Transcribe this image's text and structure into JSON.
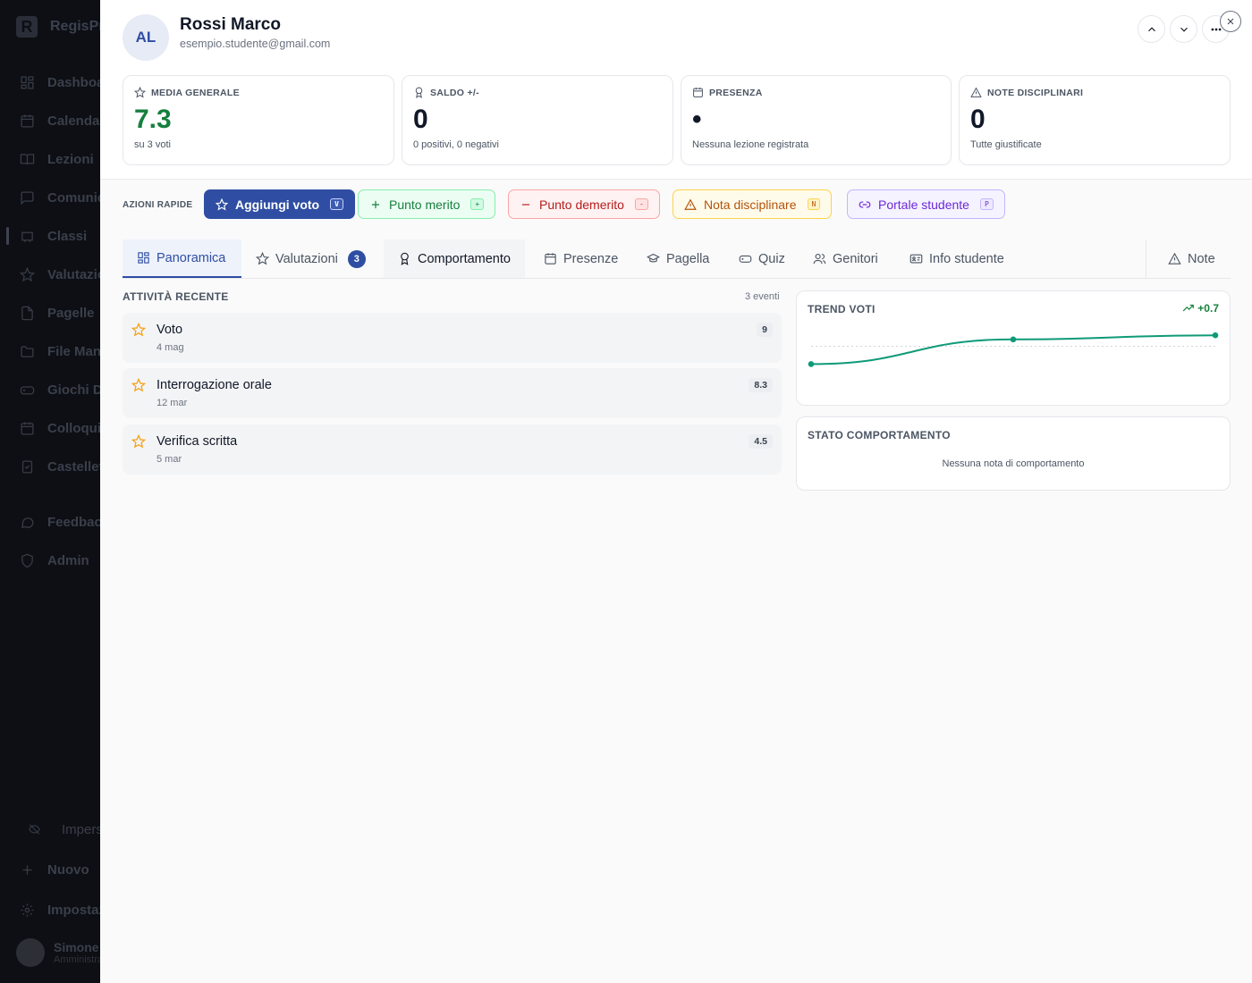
{
  "sidebar": {
    "brand": "RegisPr",
    "items": [
      {
        "label": "Dashboard",
        "icon": "dashboard-icon"
      },
      {
        "label": "Calendario",
        "icon": "calendar-icon"
      },
      {
        "label": "Lezioni",
        "icon": "book-icon"
      },
      {
        "label": "Comunicazioni",
        "icon": "message-icon"
      },
      {
        "label": "Classi",
        "icon": "class-icon"
      },
      {
        "label": "Valutazioni",
        "icon": "star-icon"
      },
      {
        "label": "Pagelle",
        "icon": "report-icon"
      },
      {
        "label": "File Manager",
        "icon": "folder-icon"
      },
      {
        "label": "Giochi Didattici",
        "icon": "gamepad-icon"
      },
      {
        "label": "Colloqui",
        "icon": "meeting-icon"
      },
      {
        "label": "Castelletto",
        "icon": "clipboard-icon"
      },
      {
        "label": "Feedback",
        "icon": "feedback-icon"
      },
      {
        "label": "Admin",
        "icon": "shield-icon"
      }
    ],
    "bottom": [
      {
        "label": "Impersona",
        "icon": "eye-off-icon"
      },
      {
        "label": "Nuovo",
        "icon": "plus-icon"
      },
      {
        "label": "Impostazioni",
        "icon": "gear-icon"
      }
    ],
    "user": {
      "name": "Simone",
      "role": "Amministratore"
    }
  },
  "student": {
    "initials": "AL",
    "name": "Rossi Marco",
    "email": "esempio.studente@gmail.com"
  },
  "stats": [
    {
      "label": "MEDIA GENERALE",
      "value": "7.3",
      "sub": "su 3 voti",
      "icon": "star-icon",
      "color": "#15803d"
    },
    {
      "label": "SALDO +/-",
      "value": "0",
      "sub": "0 positivi, 0 negativi",
      "icon": "award-icon",
      "color": "#111827"
    },
    {
      "label": "PRESENZA",
      "value": "•",
      "sub": "Nessuna lezione registrata",
      "icon": "calendar-icon",
      "color": "#111827"
    },
    {
      "label": "NOTE DISCIPLINARI",
      "value": "0",
      "sub": "Tutte giustificate",
      "icon": "warning-icon",
      "color": "#111827"
    }
  ],
  "quick_actions": {
    "label": "AZIONI RAPIDE",
    "buttons": [
      {
        "label": "Aggiungi voto",
        "key": "V",
        "icon": "star-icon"
      },
      {
        "label": "Punto merito",
        "key": "+",
        "icon": "plus-icon"
      },
      {
        "label": "Punto demerito",
        "key": "-",
        "icon": "minus-icon"
      },
      {
        "label": "Nota disciplinare",
        "key": "N",
        "icon": "warning-icon"
      },
      {
        "label": "Portale studente",
        "key": "P",
        "icon": "link-icon"
      }
    ]
  },
  "tabs": [
    {
      "label": "Panoramica",
      "icon": "grid-icon",
      "active": true
    },
    {
      "label": "Valutazioni",
      "icon": "star-icon",
      "badge": "3"
    },
    {
      "label": "Comportamento",
      "icon": "award-icon"
    },
    {
      "label": "Presenze",
      "icon": "calendar-icon"
    },
    {
      "label": "Pagella",
      "icon": "graduation-cap-icon"
    },
    {
      "label": "Quiz",
      "icon": "gamepad-icon"
    },
    {
      "label": "Genitori",
      "icon": "users-icon"
    },
    {
      "label": "Info studente",
      "icon": "id-card-icon"
    },
    {
      "label": "Note",
      "icon": "warning-icon"
    }
  ],
  "activity": {
    "title": "ATTIVITÀ RECENTE",
    "count": "3 eventi",
    "items": [
      {
        "title": "Voto",
        "date": "4 mag",
        "value": "9"
      },
      {
        "title": "Interrogazione orale",
        "date": "12 mar",
        "value": "8.3"
      },
      {
        "title": "Verifica scritta",
        "date": "5 mar",
        "value": "4.5"
      }
    ]
  },
  "trend": {
    "title": "TREND VOTI",
    "delta": "+0.7",
    "line_color": "#0f9a78"
  },
  "chart_data": {
    "type": "line",
    "x": [
      "5 mar",
      "12 mar",
      "4 mag"
    ],
    "series": [
      {
        "values": [
          6.6,
          7.2,
          7.3
        ]
      }
    ],
    "grid": false
  },
  "behavior": {
    "title": "STATO COMPORTAMENTO",
    "empty": "Nessuna nota di comportamento"
  }
}
